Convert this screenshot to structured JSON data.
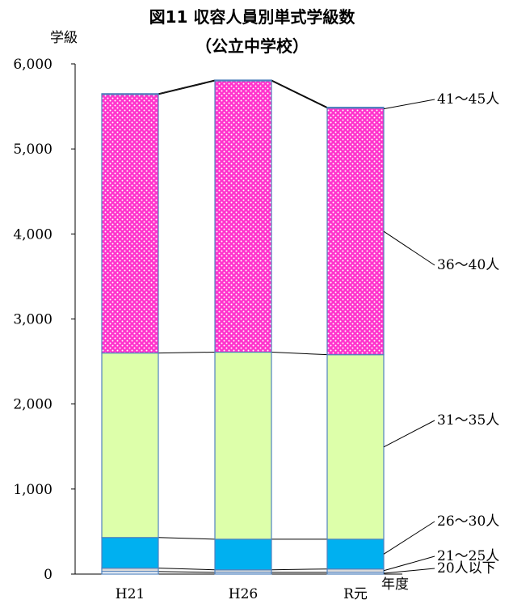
{
  "chart_data": {
    "type": "bar",
    "stacked": true,
    "title": "図11 収容人員別単式学級数",
    "subtitle": "（公立中学校）",
    "ylabel": "学級",
    "xlabel": "年度",
    "ylim": [
      0,
      6000
    ],
    "yticks": [
      "0",
      "1,000",
      "2,000",
      "3,000",
      "4,000",
      "5,000",
      "6,000"
    ],
    "categories": [
      "H21",
      "H26",
      "R元"
    ],
    "grid": false,
    "legend": "right side labels with leader lines",
    "series": [
      {
        "name": "20人以下",
        "values": [
          30,
          20,
          20
        ],
        "color": "#ffffff",
        "pattern": "none"
      },
      {
        "name": "21〜25人",
        "values": [
          40,
          30,
          40
        ],
        "color": "#d9d9d9",
        "pattern": "none"
      },
      {
        "name": "26〜30人",
        "values": [
          360,
          360,
          350
        ],
        "color": "#00b0f0",
        "pattern": "none"
      },
      {
        "name": "31〜35人",
        "values": [
          2170,
          2200,
          2170
        ],
        "color": "#ddffaa",
        "pattern": "none"
      },
      {
        "name": "36〜40人",
        "values": [
          3040,
          3190,
          2900
        ],
        "color": "#ff33cc",
        "pattern": "dots"
      },
      {
        "name": "41〜45人",
        "values": [
          10,
          10,
          10
        ],
        "color": "#ff66cc",
        "pattern": "none"
      }
    ]
  }
}
